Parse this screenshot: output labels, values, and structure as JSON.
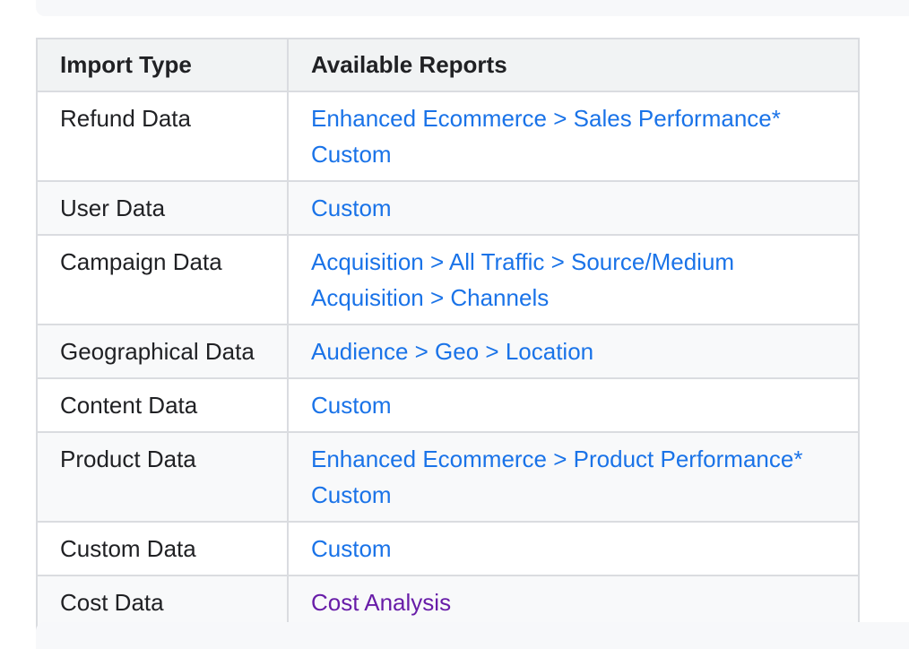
{
  "table": {
    "headers": {
      "import_type": "Import Type",
      "available_reports": "Available Reports"
    },
    "rows": [
      {
        "import_type": "Refund Data",
        "reports": [
          "Enhanced Ecommerce > Sales Performance*",
          "Custom"
        ]
      },
      {
        "import_type": "User Data",
        "reports": [
          "Custom"
        ]
      },
      {
        "import_type": "Campaign Data",
        "reports": [
          "Acquisition > All Traffic > Source/Medium",
          "Acquisition > Channels"
        ]
      },
      {
        "import_type": "Geographical Data",
        "reports": [
          "Audience > Geo > Location"
        ]
      },
      {
        "import_type": "Content Data",
        "reports": [
          "Custom"
        ]
      },
      {
        "import_type": "Product Data",
        "reports": [
          "Enhanced Ecommerce > Product Performance*",
          "Custom"
        ]
      },
      {
        "import_type": "Custom Data",
        "reports": [
          "Custom"
        ]
      },
      {
        "import_type": "Cost Data",
        "reports": [
          "Cost Analysis"
        ]
      }
    ]
  },
  "colors": {
    "link": "#1a73e8",
    "visited_link": "#681da8",
    "border": "#dadce0",
    "header_bg": "#f1f3f4"
  }
}
